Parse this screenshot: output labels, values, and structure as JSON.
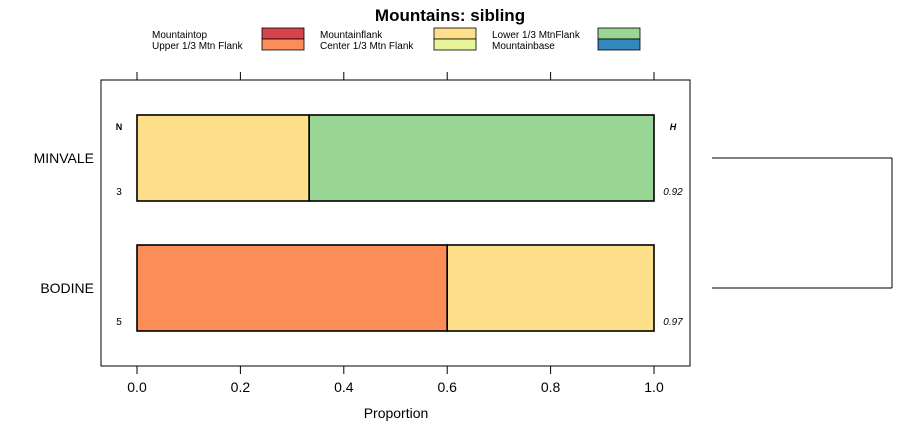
{
  "chart_data": {
    "type": "bar",
    "stacked": true,
    "orientation": "horizontal",
    "title": "Mountains: sibling",
    "xlabel": "Proportion",
    "ylabel": "",
    "xlim": [
      0,
      1
    ],
    "x_ticks": [
      "0.0",
      "0.2",
      "0.4",
      "0.6",
      "0.8",
      "1.0"
    ],
    "x_tick_values": [
      0,
      0.2,
      0.4,
      0.6,
      0.8,
      1.0
    ],
    "n_header": "N",
    "h_header": "H",
    "legend": [
      {
        "label": "Mountaintop",
        "color": "#d7424f"
      },
      {
        "label": "Upper 1/3 Mtn Flank",
        "color": "#fc8d59"
      },
      {
        "label": "Mountainflank",
        "color": "#fee08b"
      },
      {
        "label": "Center 1/3 Mtn Flank",
        "color": "#e6f598"
      },
      {
        "label": "Lower 1/3 MtnFlank",
        "color": "#99d594"
      },
      {
        "label": "Mountainbase",
        "color": "#3288bd"
      }
    ],
    "categories": [
      "MINVALE",
      "BODINE"
    ],
    "rows": [
      {
        "name": "MINVALE",
        "n": "3",
        "h": "0.92",
        "segments": [
          {
            "label": "Mountainflank",
            "value": 0.333,
            "color": "#fee08b"
          },
          {
            "label": "Lower 1/3 MtnFlank",
            "value": 0.667,
            "color": "#99d594"
          }
        ]
      },
      {
        "name": "BODINE",
        "n": "5",
        "h": "0.97",
        "segments": [
          {
            "label": "Upper 1/3 Mtn Flank",
            "value": 0.6,
            "color": "#fc8d59"
          },
          {
            "label": "Mountainflank",
            "value": 0.4,
            "color": "#fee08b"
          }
        ]
      }
    ],
    "dendrogram": {
      "leaves": [
        "MINVALE",
        "BODINE"
      ]
    }
  }
}
